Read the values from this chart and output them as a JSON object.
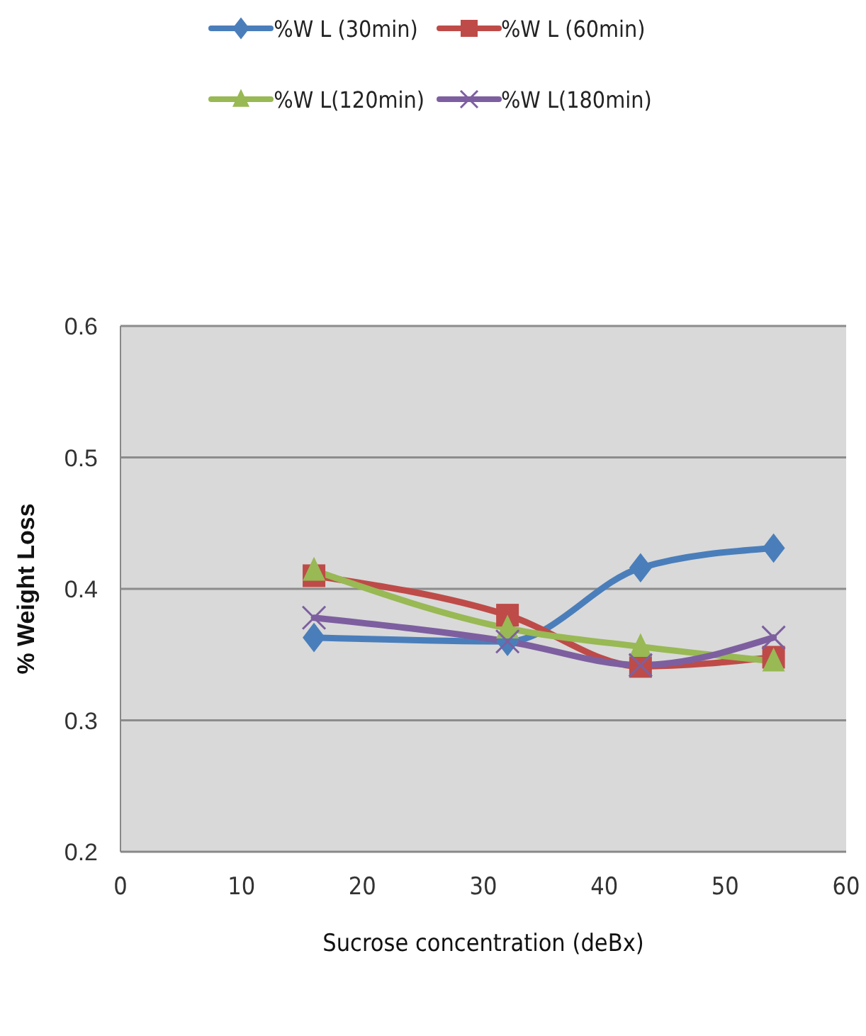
{
  "chart_data": {
    "type": "line",
    "xlabel": "Sucrose concentration (deBx)",
    "ylabel": "% Weight Loss",
    "x": [
      16,
      32,
      43,
      54
    ],
    "series": [
      {
        "name": "%W L (30min)",
        "color": "#4a7ebb",
        "marker": "diamond",
        "values": [
          0.363,
          0.36,
          0.416,
          0.431
        ]
      },
      {
        "name": "%W L (60min)",
        "color": "#be4b48",
        "marker": "square",
        "values": [
          0.41,
          0.38,
          0.341,
          0.348
        ]
      },
      {
        "name": "%W L(120min)",
        "color": "#98b954",
        "marker": "triangle",
        "values": [
          0.414,
          0.37,
          0.356,
          0.345
        ]
      },
      {
        "name": "%W L(180min)",
        "color": "#7d5fa0",
        "marker": "cross",
        "values": [
          0.378,
          0.36,
          0.342,
          0.363
        ]
      }
    ],
    "xlim": [
      0,
      60
    ],
    "xticks": [
      0,
      10,
      20,
      30,
      40,
      50,
      60
    ],
    "ylim": [
      0.2,
      0.6
    ],
    "yticks": [
      0.2,
      0.3,
      0.4,
      0.5,
      0.6
    ],
    "grid": "y",
    "legend": "top"
  }
}
